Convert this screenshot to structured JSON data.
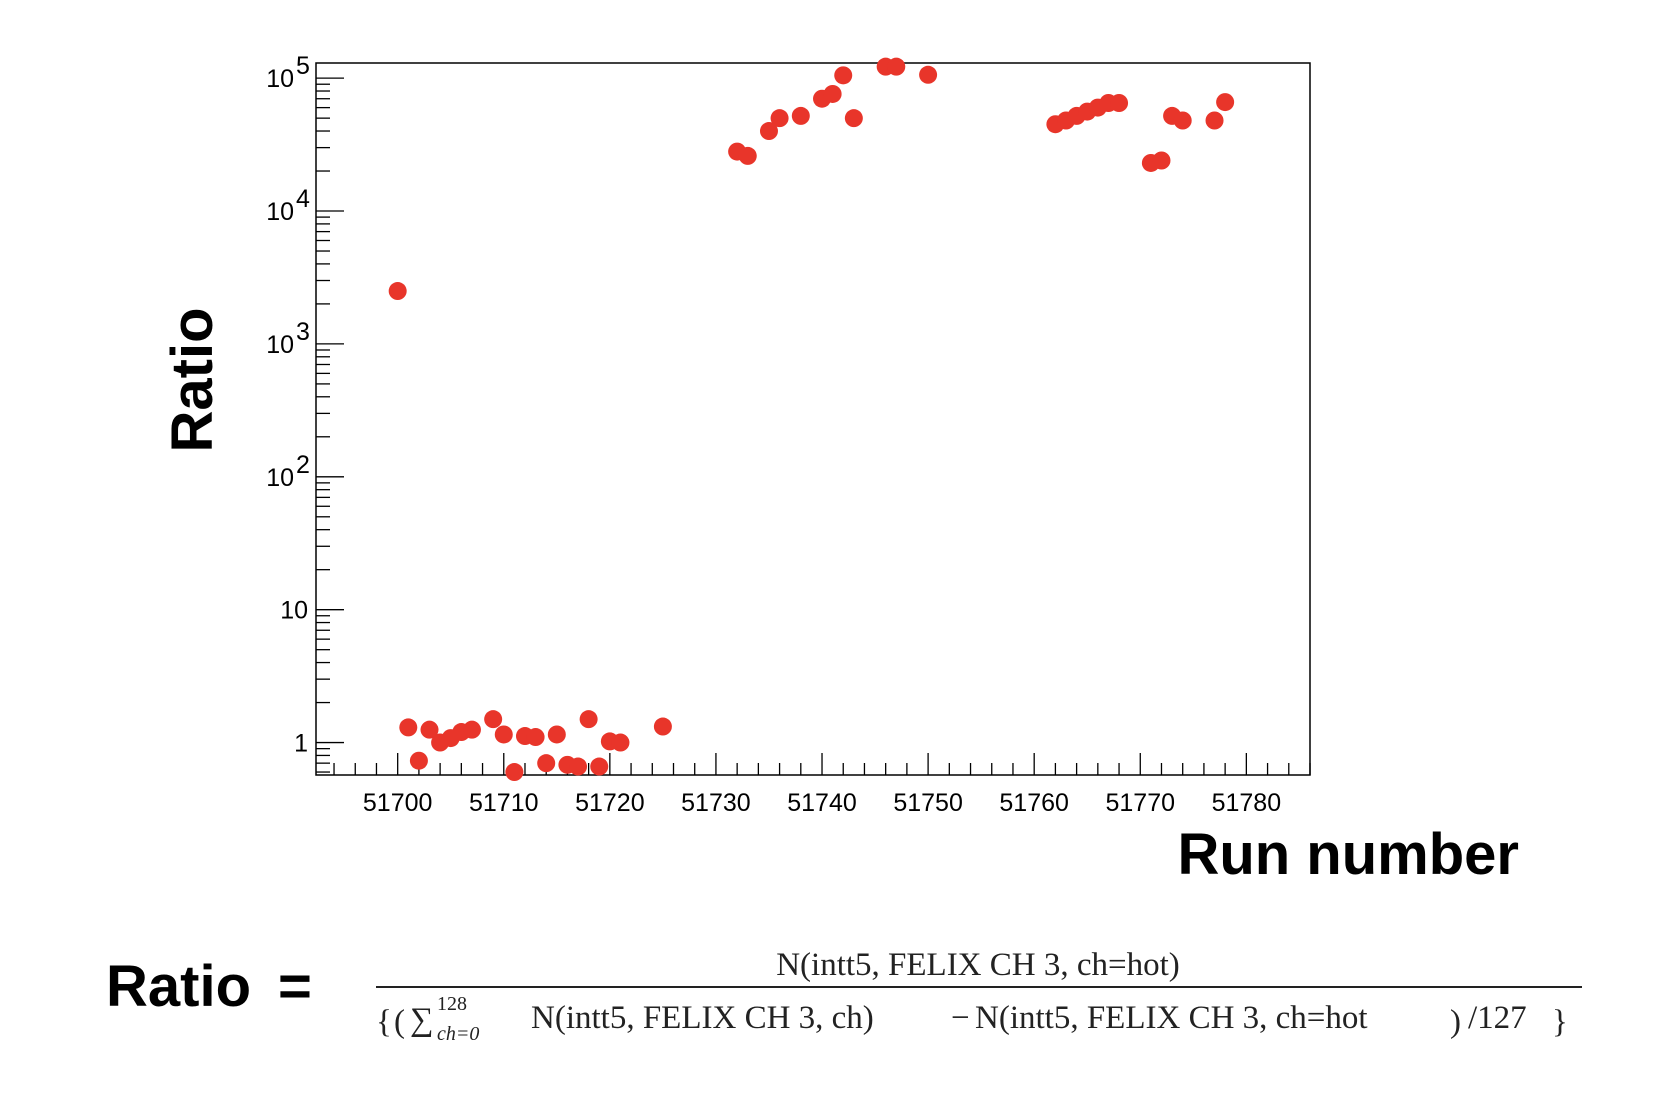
{
  "chart_data": {
    "type": "scatter",
    "xlabel": "Run number",
    "ylabel": "Ratio",
    "xlim": [
      51692.3,
      51786
    ],
    "ylim": [
      0.57,
      130000
    ],
    "y_scale": "log",
    "x_ticks": [
      "51700",
      "51710",
      "51720",
      "51730",
      "51740",
      "51750",
      "51760",
      "51770",
      "51780"
    ],
    "y_ticks": [
      {
        "value": 1,
        "label": "1"
      },
      {
        "value": 10,
        "label": "10"
      },
      {
        "value": 100,
        "label": "10",
        "exp": "2"
      },
      {
        "value": 1000,
        "label": "10",
        "exp": "3"
      },
      {
        "value": 10000,
        "label": "10",
        "exp": "4"
      },
      {
        "value": 100000,
        "label": "10",
        "exp": "5"
      }
    ],
    "marker_color": "#e8352a",
    "x": [
      51700,
      51701,
      51702,
      51703,
      51704,
      51705,
      51706,
      51707,
      51709,
      51710,
      51711,
      51712,
      51713,
      51714,
      51715,
      51716,
      51717,
      51718,
      51719,
      51720,
      51721,
      51725,
      51732,
      51733,
      51735,
      51736,
      51738,
      51740,
      51741,
      51742,
      51743,
      51746,
      51747,
      51750,
      51762,
      51763,
      51764,
      51765,
      51766,
      51767,
      51768,
      51771,
      51772,
      51773,
      51774,
      51777,
      51778
    ],
    "y": [
      2500,
      1.3,
      0.73,
      1.25,
      1.0,
      1.08,
      1.2,
      1.25,
      1.5,
      1.15,
      0.6,
      1.12,
      1.1,
      0.7,
      1.15,
      0.68,
      0.66,
      1.5,
      0.66,
      1.02,
      1.0,
      1.32,
      28000,
      26000,
      40000,
      50000,
      52000,
      70000,
      76000,
      105000,
      50000,
      122000,
      122000,
      106000,
      45000,
      48000,
      52000,
      56000,
      60000,
      65000,
      65000,
      23000,
      24000,
      52000,
      48000,
      48000,
      66000
    ]
  },
  "formula": {
    "label": "Ratio",
    "equals": "=",
    "numerator": "N(intt5, FELIX CH 3, ch=hot)",
    "sum_upper": "128",
    "sum_lower": "ch=0",
    "term1": "N(intt5, FELIX CH 3, ch)",
    "minus": "−",
    "term2": "N(intt5, FELIX CH 3, ch=hot",
    "divisor": "/127"
  }
}
